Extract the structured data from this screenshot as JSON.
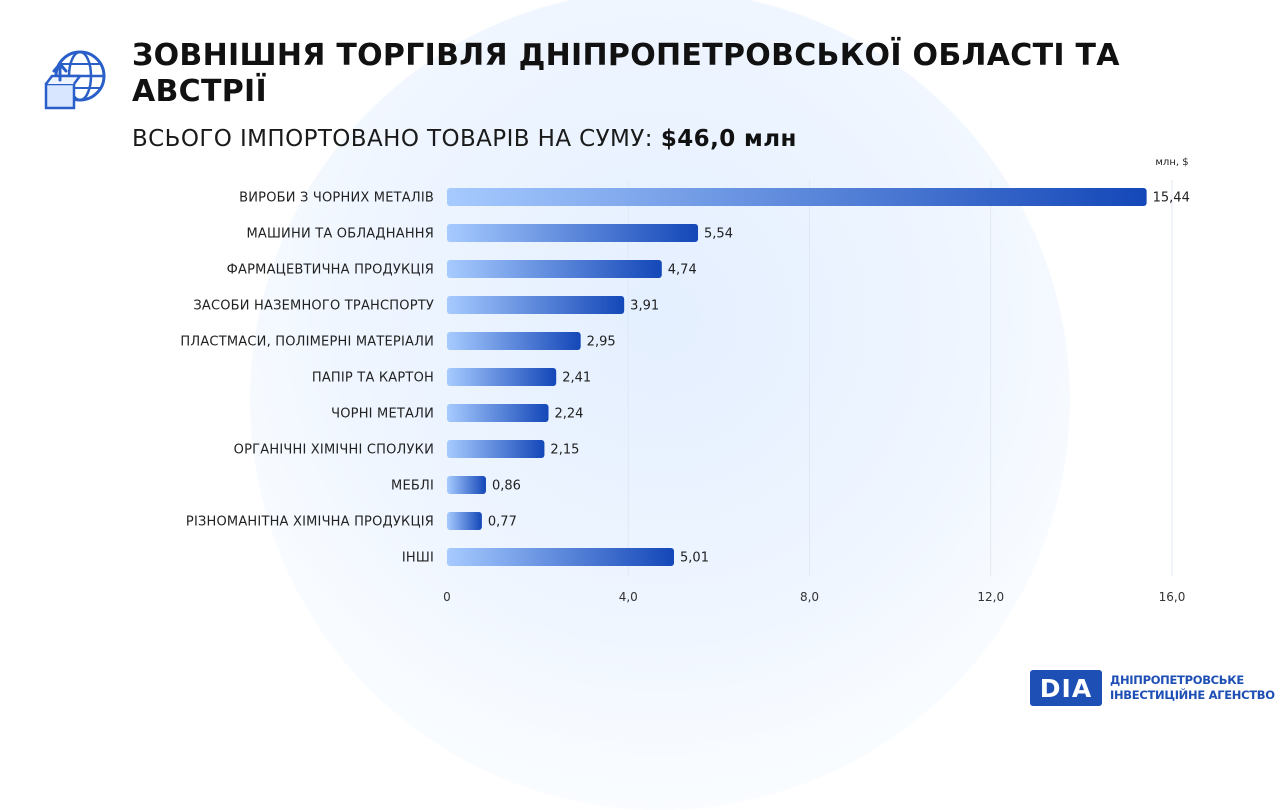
{
  "header": {
    "title": "ЗОВНІШНЯ ТОРГІВЛЯ ДНІПРОПЕТРОВСЬКОЇ ОБЛАСТІ ТА АВСТРІЇ",
    "subtitle": "ВСЬОГО ІМПОРТОВАНО ТОВАРІВ НА СУМУ:",
    "total": "$46,0 млн",
    "icon": "globe-box-icon"
  },
  "chart_data": {
    "type": "bar",
    "orientation": "horizontal",
    "unit_label": "млн, $",
    "categories": [
      "ВИРОБИ З ЧОРНИХ МЕТАЛІВ",
      "МАШИНИ ТА ОБЛАДНАННЯ",
      "ФАРМАЦЕВТИЧНА ПРОДУКЦІЯ",
      "ЗАСОБИ НАЗЕМНОГО ТРАНСПОРТУ",
      "ПЛАСТМАСИ, ПОЛІМЕРНІ МАТЕРІАЛИ",
      "ПАПІР ТА КАРТОН",
      "ЧОРНІ МЕТАЛИ",
      "ОРГАНІЧНІ ХІМІЧНІ СПОЛУКИ",
      "МЕБЛІ",
      "РІЗНОМАНІТНА ХІМІЧНА ПРОДУКЦІЯ",
      "ІНШІ"
    ],
    "values": [
      15.44,
      5.54,
      4.74,
      3.91,
      2.95,
      2.41,
      2.24,
      2.15,
      0.86,
      0.77,
      5.01
    ],
    "value_labels": [
      "15,44",
      "5,54",
      "4,74",
      "3,91",
      "2,95",
      "2,41",
      "2,24",
      "2,15",
      "0,86",
      "0,77",
      "5,01"
    ],
    "xlim": [
      0,
      16
    ],
    "ticks": [
      0,
      4,
      8,
      12,
      16
    ],
    "tick_labels": [
      "0",
      "4,0",
      "8,0",
      "12,0",
      "16,0"
    ],
    "grid": true,
    "colors": {
      "bar_start": "#a7cbff",
      "bar_end": "#1447b8",
      "grid": "#e2e8f2"
    }
  },
  "logo": {
    "mark": "DIA",
    "line1": "ДНІПРОПЕТРОВСЬКЕ",
    "line2": "ІНВЕСТИЦІЙНЕ АГЕНСТВО",
    "color": "#1e4fb5"
  }
}
